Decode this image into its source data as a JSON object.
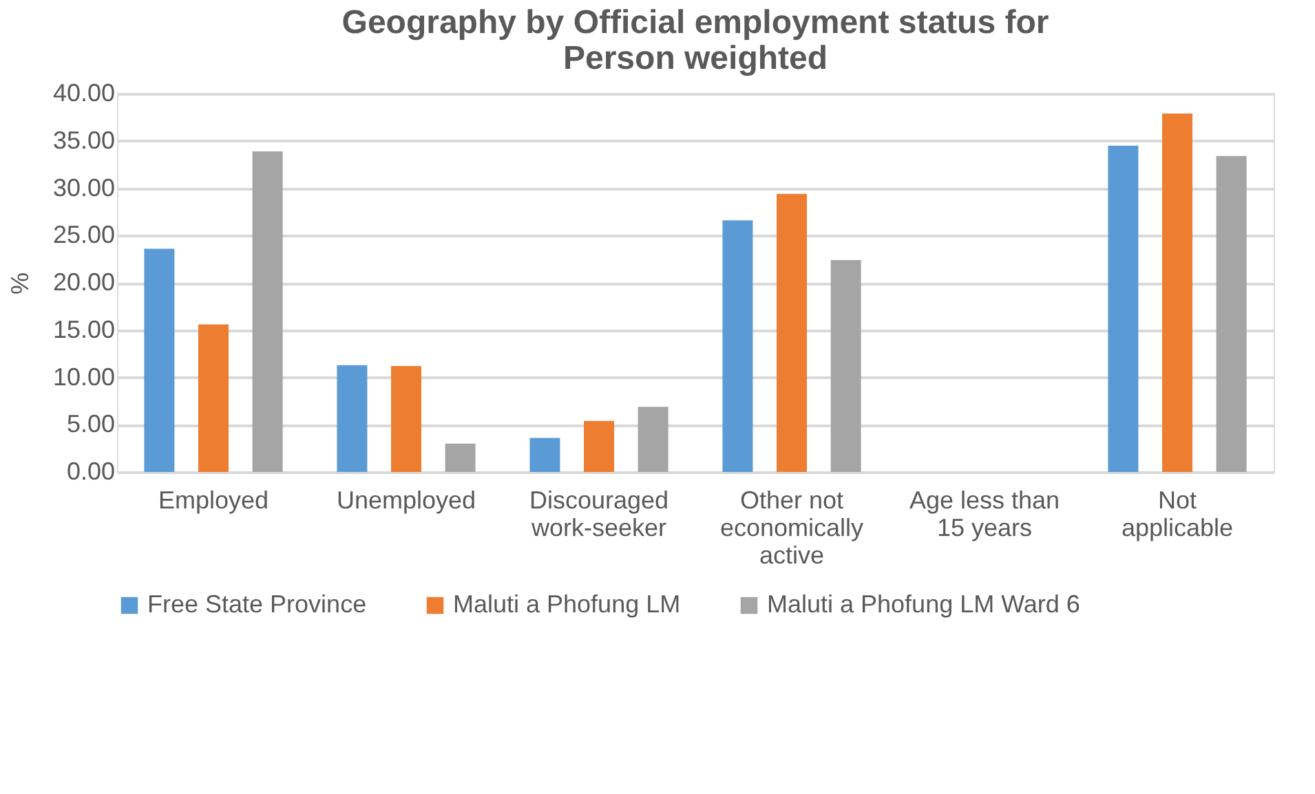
{
  "chart_data": {
    "type": "bar",
    "title": "Geography by Official employment status for Person weighted",
    "ylabel": "%",
    "categories": [
      "Employed",
      "Unemployed",
      "Discouraged work-seeker",
      "Other not economically active",
      "Age less than 15 years",
      "Not applicable"
    ],
    "series": [
      {
        "name": "Free State Province",
        "color": "#5b9bd5",
        "values": [
          23.6,
          11.3,
          3.6,
          26.6,
          0,
          34.5
        ]
      },
      {
        "name": "Maluti a Phofung LM",
        "color": "#ed7d31",
        "values": [
          15.6,
          11.2,
          5.4,
          29.4,
          0,
          37.9
        ]
      },
      {
        "name": "Maluti a Phofung LM Ward 6",
        "color": "#a5a5a5",
        "values": [
          33.9,
          3.0,
          6.9,
          22.4,
          0,
          33.4
        ]
      }
    ],
    "ylim": [
      0,
      40
    ],
    "yticks": [
      {
        "value": 0,
        "label": "0.00"
      },
      {
        "value": 5,
        "label": "5.00"
      },
      {
        "value": 10,
        "label": "10.00"
      },
      {
        "value": 15,
        "label": "15.00"
      },
      {
        "value": 20,
        "label": "20.00"
      },
      {
        "value": 25,
        "label": "25.00"
      },
      {
        "value": 30,
        "label": "30.00"
      },
      {
        "value": 35,
        "label": "35.00"
      },
      {
        "value": 40,
        "label": "40.00"
      }
    ],
    "grid": "y",
    "legend": "bottom"
  }
}
